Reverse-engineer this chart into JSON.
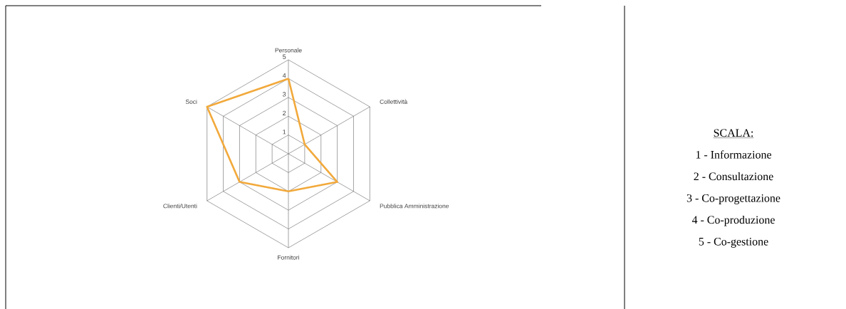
{
  "chart_data": {
    "type": "radar",
    "categories": [
      "Personale",
      "Collettività",
      "Pubblica Amministrazione",
      "Fornitori",
      "Clienti/Utenti",
      "Soci"
    ],
    "series": [
      {
        "color": "#f2a93b",
        "values": [
          4,
          1,
          3,
          2,
          3,
          5
        ]
      }
    ],
    "ylim": [
      0,
      5
    ],
    "yticks": [
      1,
      2,
      3,
      4,
      5
    ],
    "grid": true,
    "annotations": [
      "SCALA:",
      "1 - Informazione",
      "2 - Consultazione",
      "3 - Co-progettazione",
      "4 - Co-produzione",
      "5 - Co-gestione"
    ]
  }
}
